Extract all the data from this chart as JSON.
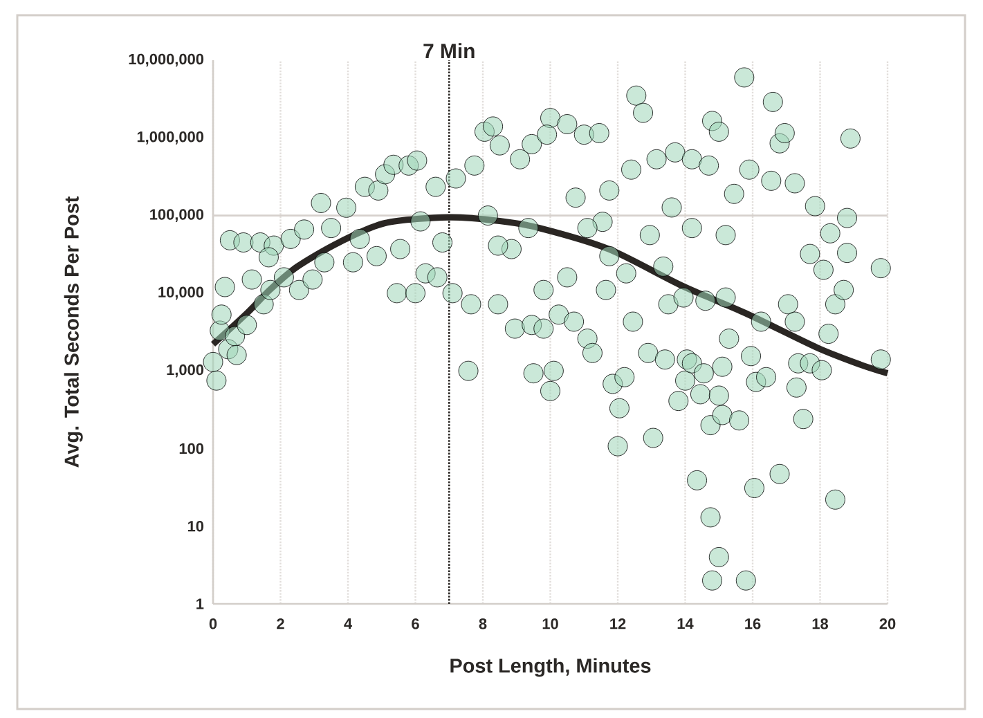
{
  "chart_data": {
    "type": "scatter",
    "xlabel": "Post Length, Minutes",
    "ylabel": "Avg. Total Seconds Per Post",
    "xlim": [
      0,
      20
    ],
    "xticks": [
      0,
      2,
      4,
      6,
      8,
      10,
      12,
      14,
      16,
      18,
      20
    ],
    "ylim": [
      1,
      10000000
    ],
    "yticks": [
      1,
      10,
      100,
      {
        "value": 1000,
        "label": "1,000"
      },
      {
        "value": 10000,
        "label": "10,000"
      },
      {
        "value": 100000,
        "label": "100,000"
      },
      {
        "value": 1000000,
        "label": "1,000,000"
      },
      {
        "value": 10000000,
        "label": "10,000,000"
      }
    ],
    "log": "y",
    "grid": "x",
    "ref_lines": [
      {
        "axis": "y",
        "value": 100000,
        "color": "#d6d0cc",
        "line_style": "solid"
      },
      {
        "axis": "x",
        "value": 7,
        "label": "7 Min",
        "color": "#2a2623",
        "line_style": "dotted"
      }
    ],
    "series": [
      {
        "color": "#9fd6b8",
        "marker": "circle",
        "x": [
          0.1,
          0,
          0.2,
          0.25,
          0.35,
          0.5,
          0.45,
          0.65,
          0.7,
          0.9,
          1.0,
          1.4,
          1.15,
          1.5,
          1.7,
          1.8,
          1.65,
          2.1,
          2.3,
          2.55,
          2.7,
          2.95,
          3.2,
          3.3,
          3.5,
          3.95,
          4.15,
          4.5,
          4.35,
          4.85,
          4.9,
          5.1,
          5.35,
          5.45,
          5.55,
          5.8,
          6.0,
          6.05,
          6.15,
          6.3,
          6.6,
          6.65,
          6.8,
          7.2,
          7.1,
          7.57,
          7.65,
          7.75,
          8.05,
          8.3,
          8.15,
          8.45,
          8.5,
          8.85,
          8.95,
          9.1,
          9.45,
          9.5,
          9.45,
          9.8,
          9.8,
          10.0,
          9.9,
          10.1,
          10.0,
          10.25,
          10.5,
          10.75,
          10.7,
          11.0,
          11.1,
          11.25,
          11.45,
          11.55,
          11.65,
          11.85,
          12.05,
          12.0,
          12.2,
          12.25,
          12.4,
          12.55,
          12.75,
          12.45,
          12.9,
          13.05,
          13.15,
          13.4,
          13.5,
          13.6,
          13.7,
          13.8,
          14.0,
          13.95,
          14.05,
          14.2,
          14.2,
          14.35,
          14.45,
          14.55,
          14.6,
          14.7,
          14.75,
          14.75,
          14.8,
          14.8,
          15.0,
          15.0,
          15.1,
          15.1,
          15.0,
          15.2,
          15.3,
          15.45,
          15.6,
          15.75,
          15.8,
          15.95,
          15.9,
          16.05,
          16.1,
          16.25,
          16.4,
          16.6,
          16.55,
          16.8,
          16.8,
          16.95,
          17.05,
          17.25,
          17.25,
          17.3,
          17.5,
          17.35,
          17.7,
          17.7,
          17.85,
          18.05,
          18.1,
          18.25,
          18.3,
          18.45,
          18.45,
          18.7,
          18.8,
          18.9,
          18.8,
          19.8,
          19.8,
          8.45,
          9.35,
          10.5,
          11.1,
          11.75,
          12.95,
          13.35,
          14.2,
          15.2,
          11.75
        ],
        "values": [
          750,
          1300,
          3300,
          5300,
          12000,
          48000,
          1900,
          2800,
          1600,
          45000,
          3900,
          45000,
          15000,
          7200,
          11000,
          41000,
          29000,
          16000,
          50000,
          11000,
          66000,
          15000,
          145000,
          25000,
          69000,
          126000,
          25000,
          234000,
          50000,
          30000,
          210000,
          340000,
          450000,
          10000,
          37000,
          440000,
          10000,
          510000,
          84000,
          18000,
          234000,
          16000,
          45000,
          300000,
          10000,
          1000,
          7200,
          440000,
          1200000,
          1400000,
          100000,
          7200,
          800000,
          37000,
          3500,
          530000,
          3900,
          930,
          830000,
          11000,
          3500,
          1800000,
          1100000,
          1000,
          550,
          5300,
          1500000,
          170000,
          4300,
          1100000,
          2600,
          1700,
          1150000,
          83000,
          11000,
          680,
          330,
          107,
          830,
          18000,
          390000,
          3500000,
          2100000,
          4300,
          1700,
          137,
          530000,
          1400,
          7200,
          127000,
          650000,
          410,
          750,
          8800,
          1400,
          1250,
          530000,
          39,
          500,
          930,
          8000,
          440000,
          200,
          13,
          2,
          1650000,
          4,
          480,
          270,
          1130,
          1200000,
          8800,
          2600,
          190000,
          230,
          6000000,
          2,
          1550,
          390000,
          31,
          720,
          4300,
          830,
          2900000,
          280000,
          47,
          850000,
          1150000,
          7200,
          4300,
          260000,
          610,
          240,
          1250,
          1250,
          32000,
          132000,
          1020,
          20000,
          3000,
          59000,
          22,
          7200,
          11000,
          93000,
          980000,
          33000,
          1400,
          21000,
          41000,
          69000,
          16000,
          69000,
          30000,
          56000,
          22000,
          69000,
          56000,
          210000
        ]
      },
      {
        "type": "line",
        "color": "#2a2623",
        "marker": "none",
        "x": [
          0,
          1,
          1.68,
          2.5,
          3.73,
          5.1,
          7,
          8.5,
          9.68,
          11.73,
          13.9,
          15.8,
          17.9,
          19.2,
          20
        ],
        "values": [
          2200,
          5500,
          11000,
          22000,
          45000,
          80000,
          95000,
          85000,
          69000,
          37000,
          12500,
          5500,
          2000,
          1200,
          930
        ]
      }
    ]
  }
}
